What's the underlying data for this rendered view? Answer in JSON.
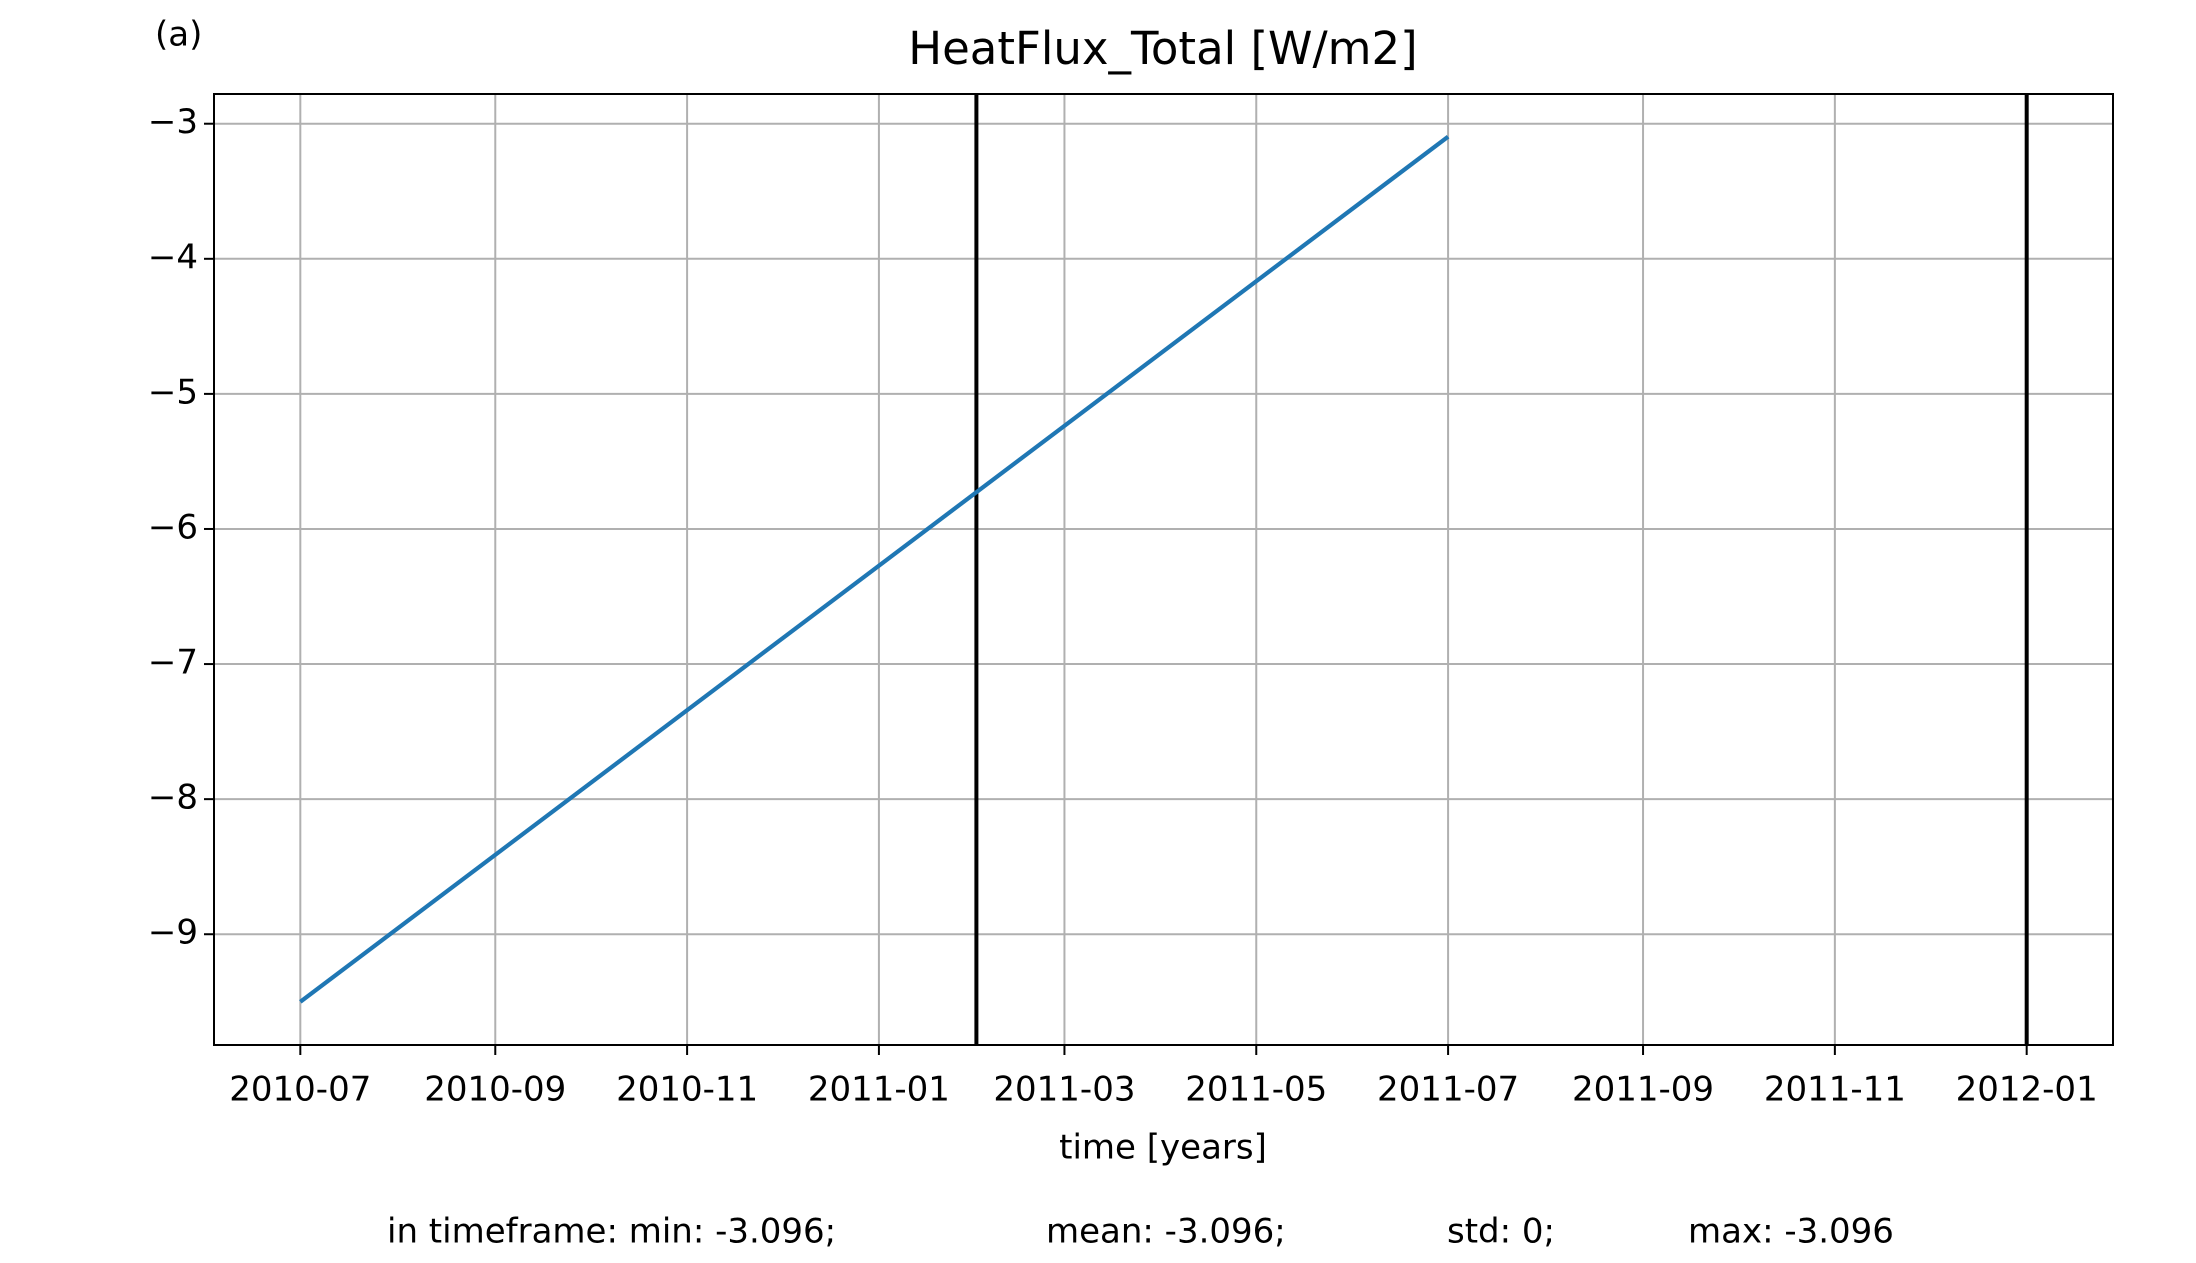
{
  "chart_data": {
    "type": "line",
    "panel_label": "(a)",
    "title": "HeatFlux_Total [W/m2]",
    "x_label": "time [years]",
    "x": [
      "2010-07",
      "2011-07"
    ],
    "values": [
      -9.5,
      -3.096
    ],
    "color": "#1f77b4",
    "vlines": [
      "2011-02",
      "2012-01"
    ],
    "vline_color": "#000000",
    "ylim": [
      -9.82,
      -2.78
    ],
    "yticks": [
      {
        "value": -9,
        "label": "−9"
      },
      {
        "value": -8,
        "label": "−8"
      },
      {
        "value": -7,
        "label": "−7"
      },
      {
        "value": -6,
        "label": "−6"
      },
      {
        "value": -5,
        "label": "−5"
      },
      {
        "value": -4,
        "label": "−4"
      },
      {
        "value": -3,
        "label": "−3"
      }
    ],
    "xticks": [
      "2010-07",
      "2010-09",
      "2010-11",
      "2011-01",
      "2011-03",
      "2011-05",
      "2011-07",
      "2011-09",
      "2011-11",
      "2012-01"
    ],
    "grid": true,
    "stats": [
      "in timeframe: min: -3.096;",
      "mean: -3.096;",
      "std: 0;",
      "max: -3.096"
    ]
  }
}
